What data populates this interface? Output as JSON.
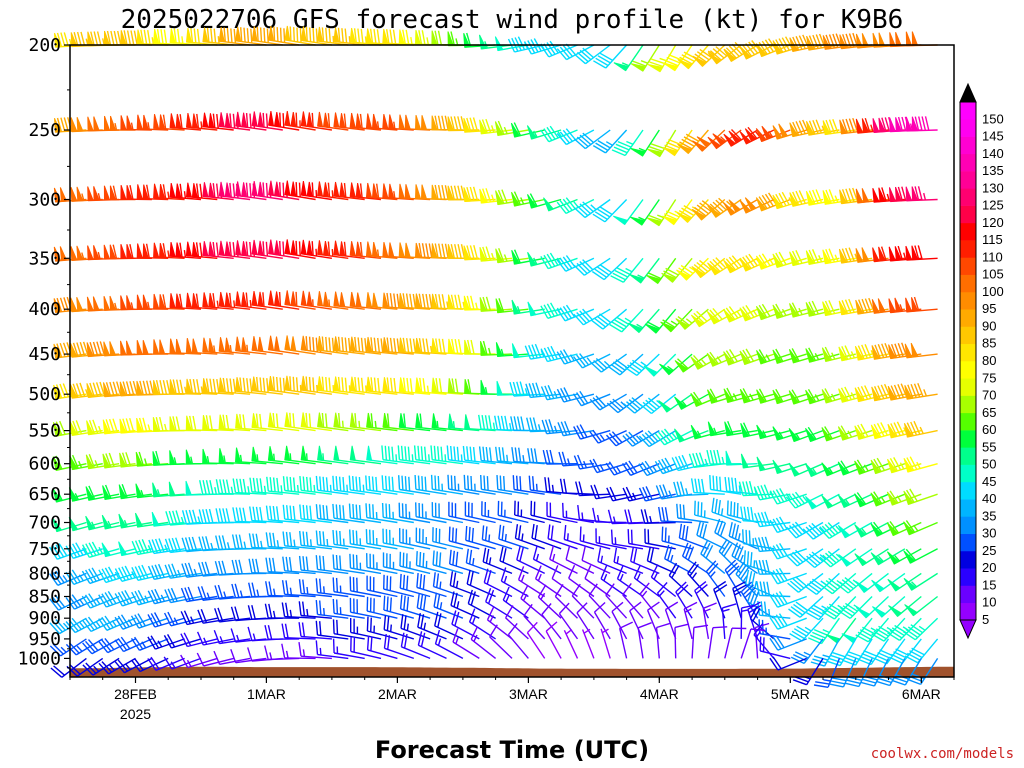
{
  "chart_data": {
    "type": "wind-barb-profile",
    "title": "2025022706 GFS forecast wind profile (kt) for K9B6",
    "xlabel": "Forecast Time (UTC)",
    "credit": "coolwx.com/models",
    "y_levels": [
      200,
      250,
      300,
      350,
      400,
      450,
      500,
      550,
      600,
      650,
      700,
      750,
      800,
      850,
      900,
      950,
      1000
    ],
    "y_tick_labels": [
      "200",
      "250",
      "300",
      "350",
      "400",
      "450",
      "500",
      "550",
      "600",
      "650",
      "700",
      "750",
      "800",
      "850",
      "900",
      "950",
      "1000"
    ],
    "y_range_hPa": [
      200,
      1050
    ],
    "x_range_hours": [
      6,
      168
    ],
    "x_ticks": [
      {
        "label": "28FEB",
        "sublabel": "2025",
        "hour": 18
      },
      {
        "label": "1MAR",
        "sublabel": "",
        "hour": 42
      },
      {
        "label": "2MAR",
        "sublabel": "",
        "hour": 66
      },
      {
        "label": "3MAR",
        "sublabel": "",
        "hour": 90
      },
      {
        "label": "4MAR",
        "sublabel": "",
        "hour": 114
      },
      {
        "label": "5MAR",
        "sublabel": "",
        "hour": 138
      },
      {
        "label": "6MAR",
        "sublabel": "",
        "hour": 162
      }
    ],
    "forecast_hours_step": 3,
    "speed_keyframes": {
      "hours": [
        6,
        20,
        30,
        40,
        56,
        70,
        80,
        92,
        103,
        108,
        115,
        125,
        134,
        140,
        150,
        160,
        168
      ],
      "levels": [
        200,
        250,
        300,
        350,
        400,
        450,
        500,
        550,
        600,
        650,
        700,
        750,
        800,
        850,
        900,
        950,
        1000
      ],
      "speed_kt": [
        [
          82,
          90,
          75,
          92,
          88,
          80,
          65,
          45,
          40,
          40,
          70,
          85,
          90,
          88,
          95,
          100,
          100
        ],
        [
          92,
          105,
          110,
          125,
          110,
          105,
          90,
          60,
          40,
          35,
          60,
          100,
          115,
          100,
          80,
          135,
          140
        ],
        [
          100,
          110,
          115,
          130,
          115,
          105,
          90,
          65,
          45,
          40,
          60,
          90,
          100,
          85,
          75,
          120,
          130
        ],
        [
          100,
          110,
          115,
          125,
          115,
          100,
          90,
          60,
          40,
          40,
          55,
          80,
          85,
          70,
          75,
          115,
          120
        ],
        [
          95,
          105,
          110,
          115,
          105,
          95,
          85,
          55,
          40,
          40,
          55,
          70,
          75,
          65,
          70,
          105,
          110
        ],
        [
          90,
          100,
          100,
          105,
          95,
          90,
          80,
          50,
          35,
          35,
          45,
          65,
          70,
          60,
          65,
          95,
          100
        ],
        [
          80,
          95,
          85,
          90,
          85,
          80,
          70,
          45,
          30,
          30,
          40,
          60,
          65,
          60,
          65,
          90,
          95
        ],
        [
          65,
          80,
          70,
          70,
          70,
          60,
          55,
          40,
          30,
          25,
          35,
          55,
          60,
          55,
          60,
          80,
          90
        ],
        [
          60,
          70,
          55,
          55,
          55,
          45,
          45,
          35,
          25,
          25,
          30,
          45,
          50,
          50,
          55,
          70,
          80
        ],
        [
          55,
          60,
          50,
          45,
          45,
          40,
          35,
          30,
          20,
          20,
          25,
          40,
          45,
          45,
          50,
          65,
          70
        ],
        [
          50,
          55,
          45,
          40,
          40,
          35,
          30,
          25,
          15,
          15,
          20,
          35,
          40,
          40,
          45,
          60,
          65
        ],
        [
          40,
          50,
          40,
          35,
          35,
          35,
          30,
          25,
          15,
          15,
          20,
          30,
          35,
          40,
          45,
          55,
          60
        ],
        [
          30,
          45,
          35,
          30,
          30,
          35,
          30,
          20,
          10,
          15,
          20,
          30,
          35,
          40,
          45,
          50,
          55
        ],
        [
          30,
          40,
          30,
          25,
          25,
          30,
          25,
          15,
          10,
          15,
          15,
          25,
          35,
          40,
          45,
          50,
          50
        ],
        [
          35,
          35,
          25,
          20,
          25,
          30,
          25,
          15,
          10,
          10,
          15,
          20,
          30,
          40,
          50,
          45,
          45
        ],
        [
          25,
          30,
          20,
          15,
          20,
          25,
          20,
          10,
          10,
          10,
          10,
          15,
          20,
          30,
          40,
          40,
          40
        ],
        [
          20,
          25,
          15,
          10,
          15,
          20,
          15,
          10,
          5,
          10,
          10,
          10,
          15,
          20,
          30,
          30,
          30
        ]
      ]
    },
    "direction_keyframes": {
      "hours": [
        6,
        30,
        50,
        80,
        95,
        103,
        110,
        118,
        130,
        145,
        168
      ],
      "upper_deg": [
        265,
        275,
        280,
        270,
        255,
        240,
        215,
        210,
        235,
        260,
        270
      ],
      "lower_deg": [
        230,
        250,
        270,
        300,
        330,
        340,
        350,
        0,
        20,
        200,
        215
      ]
    },
    "colorbar": {
      "min": 5,
      "max": 150,
      "step": 5,
      "labels": [
        "150",
        "145",
        "140",
        "135",
        "130",
        "125",
        "120",
        "115",
        "110",
        "105",
        "100",
        "95",
        "90",
        "85",
        "80",
        "75",
        "70",
        "65",
        "60",
        "55",
        "50",
        "45",
        "40",
        "35",
        "30",
        "25",
        "20",
        "15",
        "10",
        "5"
      ],
      "colors": [
        "#9400ff",
        "#6a00ff",
        "#2a00ff",
        "#0000e0",
        "#0050ff",
        "#0090ff",
        "#00b4ff",
        "#00dcff",
        "#00ffc8",
        "#00ff8c",
        "#00ff3c",
        "#55ff00",
        "#a8ff00",
        "#e6ff00",
        "#ffff00",
        "#ffe600",
        "#ffc800",
        "#ffaa00",
        "#ff8c00",
        "#ff6e00",
        "#ff4800",
        "#ff1e00",
        "#ff0000",
        "#ff0048",
        "#ff0070",
        "#ff0096",
        "#ff00b4",
        "#ff00d2",
        "#ff00f0",
        "#ff00ff"
      ],
      "below_color": "#9400ff",
      "above_color": "#000000"
    },
    "terrain": {
      "color": "#a0522d",
      "surface_pressure_keyframes": {
        "hours": [
          6,
          12,
          18,
          30,
          40,
          60,
          80,
          92,
          110,
          125,
          140,
          150,
          160,
          168
        ],
        "hPa": [
          1026,
          1026,
          1024,
          1022,
          1023,
          1023,
          1025,
          1027,
          1028,
          1028,
          1027,
          1025,
          1023,
          1022
        ]
      }
    }
  }
}
